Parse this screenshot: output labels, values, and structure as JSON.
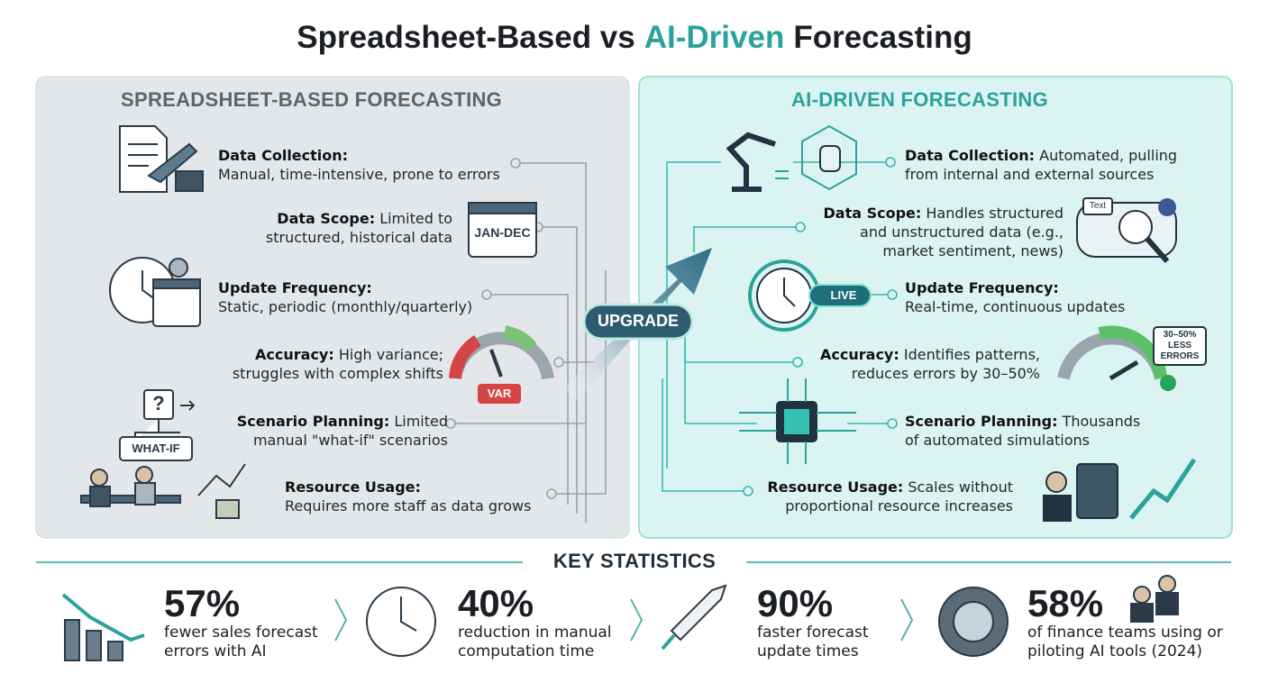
{
  "title": {
    "part1": "Spreadsheet-Based vs",
    "part2": "AI-Driven",
    "part3": "Forecasting"
  },
  "left": {
    "heading": "SPREADSHEET-BASED FORECASTING",
    "items": [
      {
        "label": "Data Collection:",
        "text": "Manual, time-intensive, prone to errors"
      },
      {
        "label": "Data Scope:",
        "text": "Limited to structured, historical data"
      },
      {
        "label": "Update Frequency:",
        "text": "Static, periodic (monthly/quarterly)"
      },
      {
        "label": "Accuracy:",
        "text": "High variance; struggles with complex shifts"
      },
      {
        "label": "Scenario Planning:",
        "text": "Limited manual \"what-if\" scenarios"
      },
      {
        "label": "Resource Usage:",
        "text": "Requires more staff as data grows"
      }
    ],
    "icon_texts": {
      "calendar": "JAN-DEC",
      "gauge": "VAR",
      "question": "?",
      "whatif": "WHAT-IF"
    }
  },
  "center": {
    "badge": "UPGRADE"
  },
  "right": {
    "heading": "AI-DRIVEN FORECASTING",
    "items": [
      {
        "label": "Data Collection:",
        "text": "Automated, pulling from internal and external sources"
      },
      {
        "label": "Data Scope:",
        "text": "Handles structured and unstructured data (e.g., market sentiment, news)"
      },
      {
        "label": "Update Frequency:",
        "text": "Real-time, continuous updates"
      },
      {
        "label": "Accuracy:",
        "text": "Identifies patterns, reduces errors by 30–50%"
      },
      {
        "label": "Scenario Planning:",
        "text": "Thousands of automated simulations"
      },
      {
        "label": "Resource Usage:",
        "text": "Scales without proportional resource increases"
      }
    ],
    "icon_texts": {
      "live": "LIVE",
      "badge": "30–50% LESS ERRORS",
      "bubble": "Text"
    }
  },
  "stats": {
    "heading": "KEY STATISTICS",
    "items": [
      {
        "value": "57%",
        "text": "fewer sales forecast errors with AI"
      },
      {
        "value": "40%",
        "text": "reduction in manual computation time"
      },
      {
        "value": "90%",
        "text": "faster forecast update times"
      },
      {
        "value": "58%",
        "text": "of finance teams using or piloting AI tools (2024)"
      }
    ]
  }
}
